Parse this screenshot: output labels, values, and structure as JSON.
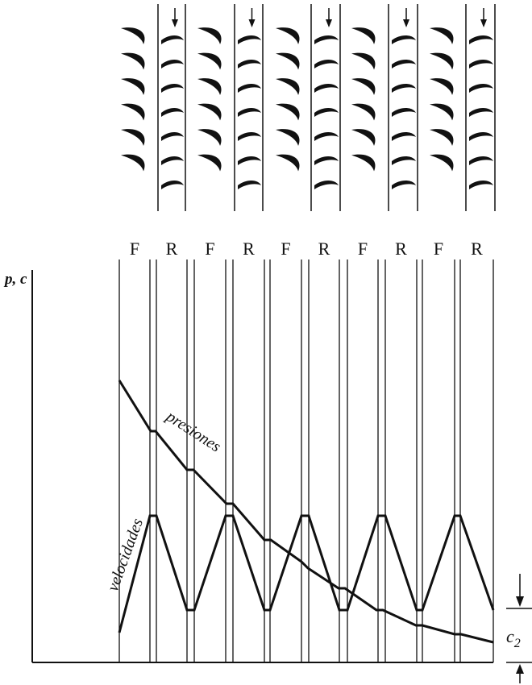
{
  "stage_labels": [
    "F",
    "R",
    "F",
    "R",
    "F",
    "R",
    "F",
    "R",
    "F",
    "R"
  ],
  "axis_label": "p, c",
  "pressure_label": "presiones",
  "velocity_label": "velocidades",
  "c2_label": "c",
  "c2_subscript": "2",
  "icons": {
    "flow_arrow": "down-arrow-icon",
    "blade": "turbine-blade-icon"
  },
  "colors": {
    "ink": "#111111",
    "background": "#ffffff"
  }
}
